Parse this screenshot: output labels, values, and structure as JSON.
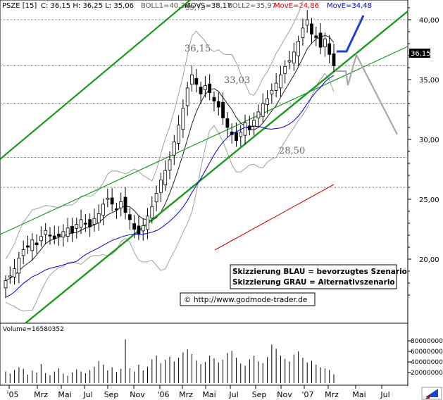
{
  "header": {
    "symbol": "PSZE [15]",
    "ohlc": "C: 36,15  H: 36,25  L: 35,06",
    "boll1": "BOLL1=40,36",
    "movs": "MOVS=38,17",
    "boll2": "BOLL2=35,97",
    "move1": "MovE=24,86",
    "move2": "MovE=34,48"
  },
  "colors": {
    "candle_up": "#ffffff",
    "candle_down": "#000000",
    "trend_green": "#1a9a1a",
    "move_short": "#cc0000",
    "move_long": "#0000cc",
    "boll": "#a0a0a0",
    "scenario_blue": "#1a3fd6",
    "scenario_grey": "#a8a8a8",
    "price_box": "#000000"
  },
  "annotations": {
    "level_high": "36,15",
    "level_mid": "33,03",
    "level_low": "28,50",
    "top_partial": "39,73",
    "legend_blue": "Skizzierung BLAU = bevorzugtes Szenario",
    "legend_grey": "Skizzierung GRAU = Alternativszenario",
    "copyright": "© http://www.godmode-trader.de",
    "last_price": "36,15"
  },
  "volume": {
    "label": "Volume=16580352",
    "axis": [
      "80000000",
      "60000000",
      "40000000",
      "20000000"
    ]
  },
  "x_axis_labels": [
    "'05",
    "Mrz",
    "Mai",
    "Jul",
    "Sep",
    "Nov",
    "'06",
    "Mrz",
    "Mai",
    "Jul",
    "Sep",
    "Nov",
    "'07",
    "Mrz",
    "Mai",
    "Jul"
  ],
  "chart_data": {
    "type": "candlestick",
    "y_ticks": [
      "40,00",
      "35,00",
      "30,00",
      "25,00",
      "20,00"
    ],
    "ylim": [
      16.5,
      41.2
    ],
    "horizontal_levels": [
      36.15,
      33.03,
      28.5,
      26.0,
      40.0
    ],
    "series_description": "weekly candles PSZE from Jan 2005 to Mar 2007",
    "closes": [
      18.2,
      18.6,
      19.2,
      20.1,
      20.8,
      21.0,
      21.6,
      21.2,
      21.9,
      22.4,
      22.0,
      21.7,
      21.9,
      22.3,
      22.6,
      22.2,
      22.9,
      23.3,
      23.0,
      22.7,
      23.4,
      23.8,
      24.6,
      25.1,
      24.6,
      24.2,
      24.8,
      23.9,
      23.3,
      22.5,
      22.1,
      22.8,
      23.6,
      24.4,
      25.5,
      26.6,
      27.4,
      28.3,
      29.8,
      31.2,
      32.6,
      34.3,
      35.4,
      34.6,
      33.8,
      34.5,
      33.9,
      33.2,
      32.7,
      31.8,
      31.0,
      30.4,
      29.9,
      30.6,
      31.4,
      30.8,
      31.6,
      32.3,
      33.0,
      33.4,
      34.1,
      34.7,
      35.4,
      36.1,
      36.6,
      37.3,
      38.2,
      39.3,
      40.0,
      38.8,
      38.5,
      37.7,
      38.4,
      37.1,
      36.15
    ],
    "projections": {
      "blue": [
        [
          36.15,
          "Mrz"
        ],
        [
          40.0,
          "Mai"
        ]
      ],
      "grey": [
        [
          36.15,
          "Mrz"
        ],
        [
          34.5,
          "Apr"
        ],
        [
          33.0,
          "Apr"
        ],
        [
          36.2,
          "Mai"
        ],
        [
          28.8,
          "Jul"
        ]
      ]
    },
    "volumes_millions": [
      22,
      18,
      25,
      30,
      27,
      16,
      24,
      20,
      36,
      19,
      15,
      22,
      28,
      18,
      14,
      20,
      26,
      22,
      19,
      25,
      31,
      42,
      35,
      24,
      30,
      21,
      27,
      83,
      28,
      22,
      35,
      24,
      31,
      45,
      52,
      38,
      44,
      50,
      41,
      48,
      58,
      64,
      55,
      43,
      36,
      40,
      52,
      47,
      39,
      44,
      57,
      61,
      48,
      37,
      33,
      45,
      52,
      41,
      38,
      49,
      73,
      65,
      52,
      46,
      41,
      54,
      60,
      48,
      39,
      42,
      35,
      30,
      28,
      25,
      16.6
    ]
  }
}
